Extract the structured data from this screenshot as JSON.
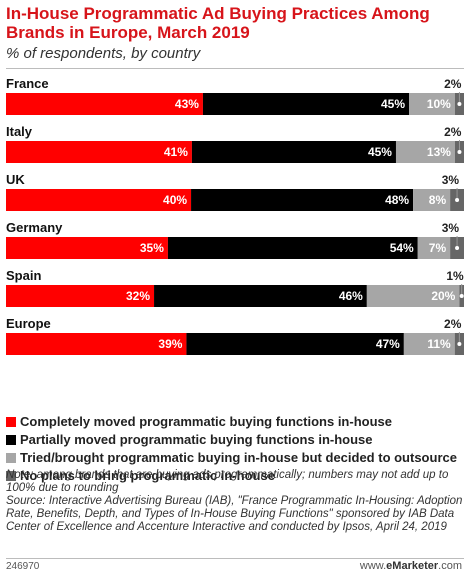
{
  "title": "In-House Programmatic Ad Buying Practices Among Brands in Europe, March 2019",
  "subtitle": "% of respondents, by country",
  "chart_data": {
    "type": "bar",
    "orientation": "horizontal-stacked",
    "categories": [
      "France",
      "Italy",
      "UK",
      "Germany",
      "Spain",
      "Europe"
    ],
    "series": [
      {
        "name": "Completely moved programmatic buying functions in-house",
        "color": "#ff0000",
        "values": [
          43,
          41,
          40,
          35,
          32,
          39
        ]
      },
      {
        "name": "Partially moved programmatic buying functions in-house",
        "color": "#000000",
        "values": [
          45,
          45,
          48,
          54,
          46,
          47
        ]
      },
      {
        "name": "Tried/brought programmatic buying in-house but decided to outsource",
        "color": "#a6a6a6",
        "values": [
          10,
          13,
          8,
          7,
          20,
          11
        ]
      },
      {
        "name": "No plans to bring programmatic in-house",
        "color": "#666666",
        "values": [
          2,
          2,
          3,
          3,
          1,
          2
        ]
      }
    ],
    "value_suffix": "%",
    "legend_position": "bottom"
  },
  "legend": [
    {
      "label": "Completely moved programmatic buying functions in-house",
      "color": "#ff0000"
    },
    {
      "label": "Partially moved programmatic buying functions in-house",
      "color": "#000000"
    },
    {
      "label": "Tried/brought programmatic buying in-house but decided to outsource",
      "color": "#a6a6a6"
    },
    {
      "label": "No plans to bring programmatic in-house",
      "color": "#666666"
    }
  ],
  "note": "Note: among brands that are buying ads programmatically; numbers may not add up to 100% due to rounding",
  "source": "Source: Interactive Advertising Bureau (IAB), \"France Programmatic In-Housing: Adoption Rate, Benefits, Depth, and Types of In-House Buying Functions\" sponsored by IAB Data Center of Excellence and Accenture Interactive and conducted by Ipsos, April 24, 2019",
  "footer": {
    "code": "246970",
    "brand_bold": "eMarketer",
    "brand_rest": ".com",
    "brand_prefix": "www."
  }
}
